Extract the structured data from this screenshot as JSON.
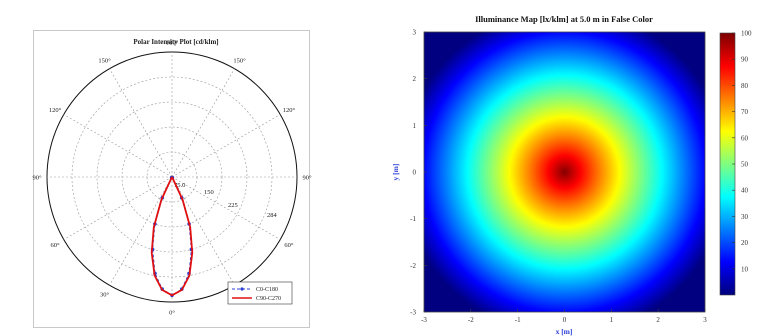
{
  "chart_data": [
    {
      "type": "polar",
      "title": "Polar Intensity Plot [cd/klm]",
      "angle_labels": [
        "180°",
        "150°",
        "120°",
        "90°",
        "60°",
        "30°",
        "0°",
        "30°",
        "60°",
        "90°",
        "120°",
        "150°"
      ],
      "radial_labels": [
        "75.0",
        "150",
        "225",
        "284"
      ],
      "radial_max": 300,
      "series": [
        {
          "name": "C0-C180",
          "color": "#2b3fd6",
          "line_style": "dashed-with-markers",
          "angles_deg": [
            -30,
            -25,
            -20,
            -15,
            -10,
            -5,
            0,
            5,
            10,
            15,
            20,
            25,
            30
          ],
          "values": [
            2,
            55,
            120,
            180,
            235,
            270,
            284,
            270,
            235,
            180,
            120,
            55,
            2
          ]
        },
        {
          "name": "C90-C270",
          "color": "#e01010",
          "line_style": "solid",
          "angles_deg": [
            -30,
            -25,
            -20,
            -15,
            -10,
            -5,
            0,
            5,
            10,
            15,
            20,
            25,
            30
          ],
          "values": [
            2,
            60,
            128,
            188,
            240,
            272,
            284,
            272,
            240,
            188,
            128,
            60,
            2
          ]
        }
      ],
      "legend": {
        "position": "bottom-right",
        "entries": [
          "C0-C180",
          "C90-C270"
        ]
      }
    },
    {
      "type": "heatmap",
      "title": "Illuminance Map [lx/klm] at 5.0 m in False Color",
      "xlabel": "x [m]",
      "ylabel": "y [m]",
      "xlim": [
        -3,
        3
      ],
      "ylim": [
        -3,
        3
      ],
      "x_ticks": [
        "-3",
        "-2",
        "-1",
        "0",
        "1",
        "2",
        "3"
      ],
      "y_ticks": [
        "3",
        "2",
        "1",
        "0",
        "-1",
        "-2",
        "-3"
      ],
      "z_max": 100,
      "z_min": 0,
      "falloff_radius_m": 3.5,
      "colorbar": {
        "min": 0,
        "max": 100,
        "ticks": [
          "100",
          "90",
          "80",
          "70",
          "60",
          "50",
          "40",
          "30",
          "20",
          "10"
        ],
        "colormap": "jet"
      }
    }
  ]
}
